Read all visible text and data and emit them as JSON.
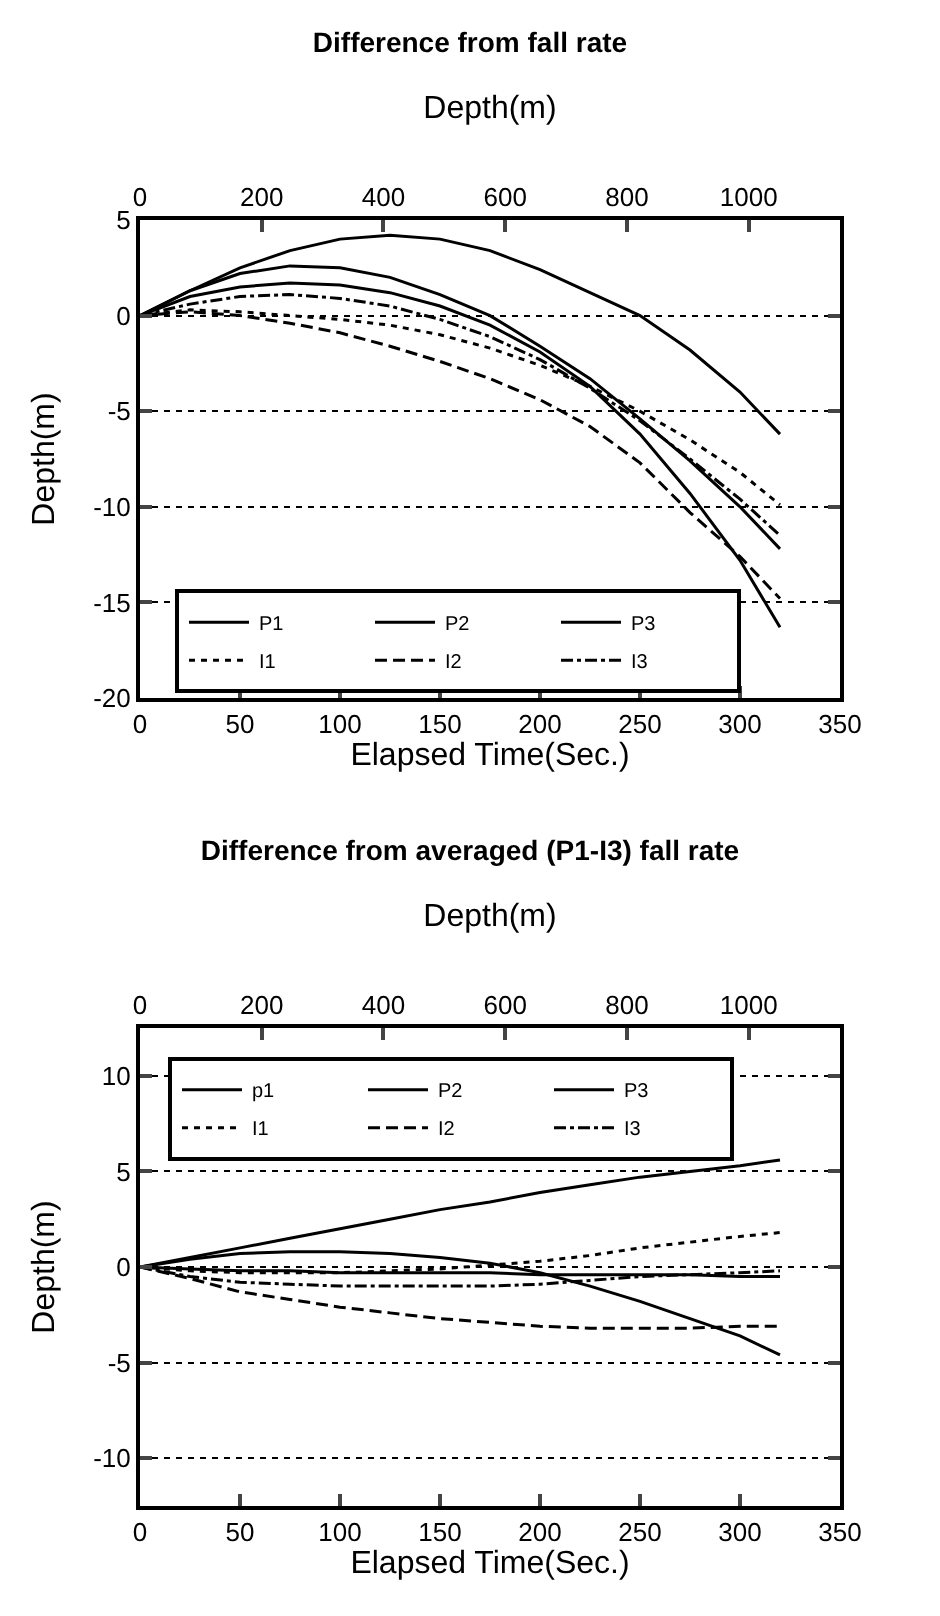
{
  "chart_data": [
    {
      "type": "line",
      "title": "Difference from fall rate",
      "xlabel": "Elapsed Time(Sec.)",
      "x2label": "Depth(m)",
      "ylabel": "Depth(m)",
      "x": [
        0,
        25,
        50,
        75,
        100,
        125,
        150,
        175,
        200,
        225,
        250,
        275,
        300,
        320
      ],
      "xlim": [
        0,
        350
      ],
      "xticks": [
        0,
        50,
        100,
        150,
        200,
        250,
        300,
        350
      ],
      "x2lim": [
        0,
        1150
      ],
      "x2ticks": [
        0,
        200,
        400,
        600,
        800,
        1000
      ],
      "ylim": [
        -20,
        5
      ],
      "yticks": [
        -20,
        -15,
        -10,
        -5,
        0,
        5
      ],
      "grid": "y",
      "legend": "bottom left",
      "marker": "none",
      "series": [
        {
          "name": "P1",
          "color": "#000000",
          "line_style": "solid",
          "values": [
            0,
            1.3,
            2.5,
            3.4,
            4.0,
            4.2,
            4.0,
            3.4,
            2.4,
            1.2,
            0,
            -1.8,
            -4.0,
            -6.2
          ]
        },
        {
          "name": "P2",
          "color": "#000000",
          "line_style": "solid",
          "values": [
            0,
            1.3,
            2.2,
            2.6,
            2.5,
            2.0,
            1.1,
            0,
            -1.6,
            -3.3,
            -5.4,
            -7.6,
            -10.0,
            -12.2
          ]
        },
        {
          "name": "P3",
          "color": "#000000",
          "line_style": "solid",
          "values": [
            0,
            1.0,
            1.5,
            1.7,
            1.6,
            1.2,
            0.5,
            -0.5,
            -1.9,
            -3.7,
            -6.2,
            -9.3,
            -12.8,
            -16.3
          ]
        },
        {
          "name": "I1",
          "color": "#000000",
          "line_style": "dotted",
          "values": [
            0,
            0.3,
            0.2,
            0,
            -0.2,
            -0.5,
            -1.0,
            -1.7,
            -2.6,
            -3.7,
            -5.0,
            -6.5,
            -8.2,
            -9.9
          ]
        },
        {
          "name": "I2",
          "color": "#000000",
          "line_style": "dashed",
          "values": [
            0,
            0.2,
            0,
            -0.4,
            -0.9,
            -1.6,
            -2.4,
            -3.3,
            -4.4,
            -5.8,
            -7.7,
            -10.3,
            -12.6,
            -14.8
          ]
        },
        {
          "name": "I3",
          "color": "#000000",
          "line_style": "dashdot",
          "values": [
            0,
            0.6,
            1.0,
            1.1,
            0.9,
            0.5,
            -0.2,
            -1.1,
            -2.3,
            -3.8,
            -5.5,
            -7.5,
            -9.6,
            -11.5
          ]
        }
      ]
    },
    {
      "type": "line",
      "title": "Difference from averaged (P1-I3) fall rate",
      "xlabel": "Elapsed Time(Sec.)",
      "x2label": "Depth(m)",
      "ylabel": "Depth(m)",
      "x": [
        0,
        25,
        50,
        75,
        100,
        125,
        150,
        175,
        200,
        225,
        250,
        275,
        300,
        320
      ],
      "xlim": [
        0,
        350
      ],
      "xticks": [
        0,
        50,
        100,
        150,
        200,
        250,
        300,
        350
      ],
      "x2lim": [
        0,
        1150
      ],
      "x2ticks": [
        0,
        200,
        400,
        600,
        800,
        1000
      ],
      "ylim": [
        -12.5,
        12.5
      ],
      "yticks": [
        -10,
        -5,
        0,
        5,
        10
      ],
      "grid": "y",
      "legend": "top left",
      "marker": "none",
      "series": [
        {
          "name": "p1",
          "color": "#000000",
          "line_style": "solid",
          "values": [
            0,
            0.5,
            1.0,
            1.5,
            2.0,
            2.5,
            3.0,
            3.4,
            3.9,
            4.3,
            4.7,
            5.0,
            5.3,
            5.6
          ]
        },
        {
          "name": "P2",
          "color": "#000000",
          "line_style": "solid",
          "values": [
            0,
            0.4,
            0.7,
            0.8,
            0.8,
            0.7,
            0.5,
            0.2,
            -0.3,
            -1.0,
            -1.8,
            -2.7,
            -3.6,
            -4.6
          ]
        },
        {
          "name": "P3",
          "color": "#000000",
          "line_style": "solid",
          "values": [
            0,
            -0.1,
            -0.2,
            -0.2,
            -0.3,
            -0.3,
            -0.3,
            -0.3,
            -0.4,
            -0.4,
            -0.4,
            -0.4,
            -0.5,
            -0.5
          ]
        },
        {
          "name": "I1",
          "color": "#000000",
          "line_style": "dotted",
          "values": [
            0,
            -0.2,
            -0.3,
            -0.3,
            -0.3,
            -0.2,
            -0.1,
            0.1,
            0.3,
            0.6,
            1.0,
            1.3,
            1.6,
            1.8
          ]
        },
        {
          "name": "I2",
          "color": "#000000",
          "line_style": "dashed",
          "values": [
            0,
            -0.6,
            -1.3,
            -1.7,
            -2.1,
            -2.4,
            -2.7,
            -2.9,
            -3.1,
            -3.2,
            -3.2,
            -3.2,
            -3.1,
            -3.1
          ]
        },
        {
          "name": "I3",
          "color": "#000000",
          "line_style": "dashdot",
          "values": [
            0,
            -0.5,
            -0.8,
            -0.9,
            -1.0,
            -1.0,
            -1.0,
            -1.0,
            -0.9,
            -0.7,
            -0.5,
            -0.4,
            -0.3,
            -0.2
          ]
        }
      ]
    }
  ]
}
